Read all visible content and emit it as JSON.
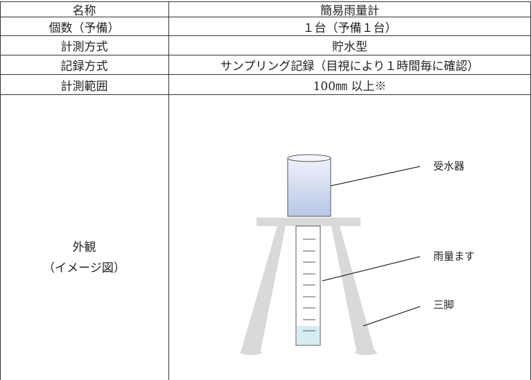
{
  "table": {
    "rows": [
      [
        "名称",
        "簡易雨量計"
      ],
      [
        "個数（予備）",
        "１台（予備１台）"
      ],
      [
        "計測方式",
        "貯水型"
      ],
      [
        "記録方式",
        "サンプリング記録（目視により１時間毎に確認）"
      ],
      [
        "計測範囲",
        "100㎜ 以上※"
      ]
    ],
    "appearance": {
      "label": [
        "外観",
        "（イメージ図）"
      ],
      "callouts": [
        "受水器",
        "雨量ます",
        "三脚"
      ]
    }
  }
}
